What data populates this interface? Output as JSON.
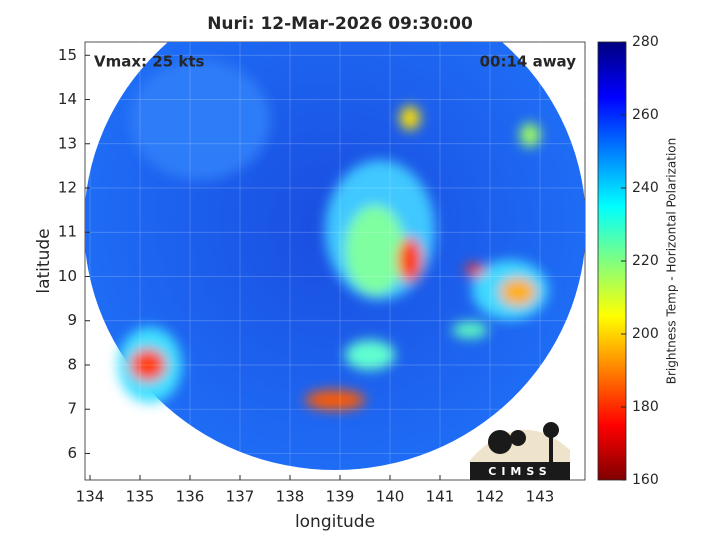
{
  "map": {
    "title": "Nuri: 12-Mar-2026 09:30:00",
    "annotations": {
      "left": "Vmax: 25 kts",
      "right": "00:14 away"
    },
    "xlabel": "longitude",
    "ylabel": "latitude",
    "xlim": [
      133.9,
      143.9
    ],
    "ylim": [
      5.4,
      15.3
    ],
    "xticks": [
      134,
      135,
      136,
      137,
      138,
      139,
      140,
      141,
      142,
      143
    ],
    "yticks": [
      6,
      7,
      8,
      9,
      10,
      11,
      12,
      13,
      14,
      15
    ],
    "grid": true,
    "colorbar": {
      "label": "Brightness Temp - Horizontal Polarization",
      "lim": [
        160,
        280
      ],
      "ticks": [
        160,
        180,
        200,
        220,
        240,
        260,
        280
      ]
    },
    "logo": "CIMSS"
  }
}
